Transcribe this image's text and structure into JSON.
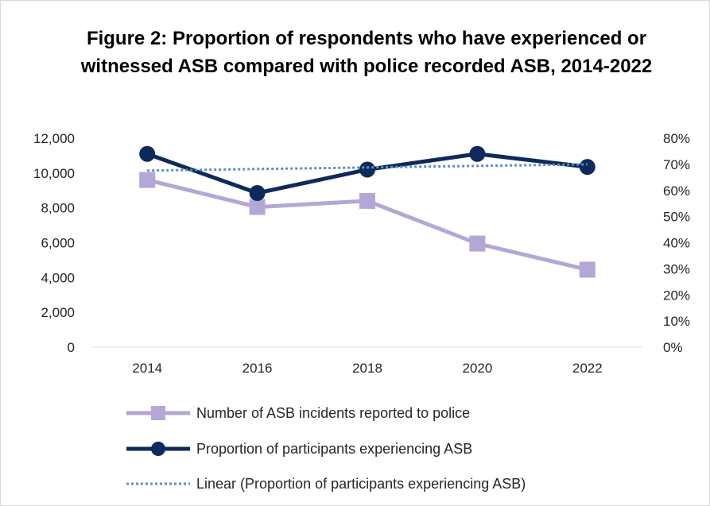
{
  "chart_data": {
    "type": "line",
    "title": "Figure 2: Proportion of respondents who have experienced or witnessed ASB compared with police recorded ASB, 2014-2022",
    "x": [
      "2014",
      "2016",
      "2018",
      "2020",
      "2022"
    ],
    "y_left": {
      "min": 0,
      "max": 12000,
      "step": 2000,
      "ticks": [
        "0",
        "2,000",
        "4,000",
        "6,000",
        "8,000",
        "10,000",
        "12,000"
      ]
    },
    "y_right": {
      "min": 0,
      "max": 0.8,
      "step": 0.1,
      "ticks": [
        "0%",
        "10%",
        "20%",
        "30%",
        "40%",
        "50%",
        "60%",
        "70%",
        "80%"
      ]
    },
    "series": [
      {
        "name": "Number of ASB incidents reported to police",
        "axis": "left",
        "values": [
          9600,
          8050,
          8400,
          5950,
          4450
        ],
        "color": "#b4a7d6",
        "marker": "square"
      },
      {
        "name": "Proportion of participants experiencing ASB",
        "axis": "right",
        "values": [
          0.74,
          0.59,
          0.68,
          0.74,
          0.69
        ],
        "color": "#0e2a5c",
        "marker": "circle"
      },
      {
        "name": "Linear (Proportion of participants experiencing ASB)",
        "axis": "right",
        "values": [
          0.676,
          0.682,
          0.688,
          0.694,
          0.7
        ],
        "color": "#5b8ec9",
        "style": "dotted"
      }
    ],
    "legend_position": "bottom",
    "grid": false
  }
}
